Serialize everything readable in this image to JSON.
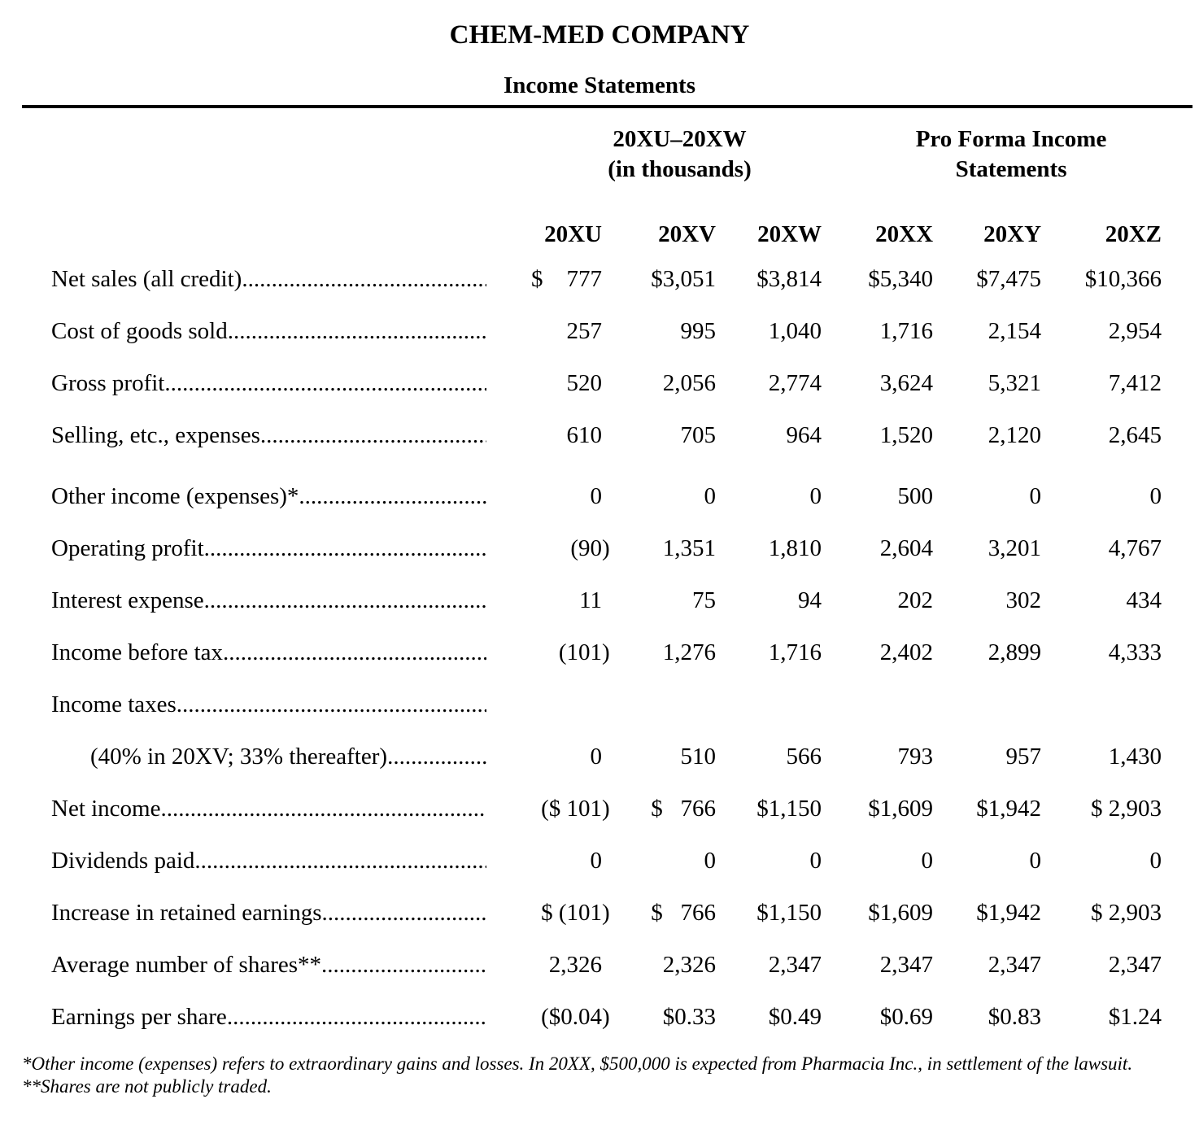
{
  "header": {
    "company": "CHEM-MED COMPANY",
    "subtitle": "Income Statements"
  },
  "table": {
    "group_headers": [
      {
        "line1": "20XU–20XW",
        "line2": "(in thousands)"
      },
      {
        "line1": "Pro Forma Income",
        "line2": "Statements"
      }
    ],
    "columns": [
      "20XU",
      "20XV",
      "20XW",
      "20XX",
      "20XY",
      "20XZ"
    ],
    "rows": [
      {
        "label": "Net sales (all credit)",
        "values": [
          "$    777",
          "$3,051",
          "$3,814",
          "$5,340",
          "$7,475",
          "$10,366"
        ]
      },
      {
        "label": "Cost of goods sold",
        "values": [
          "257",
          "995",
          "1,040",
          "1,716",
          "2,154",
          "2,954"
        ]
      },
      {
        "label": "Gross profit",
        "values": [
          "520",
          "2,056",
          "2,774",
          "3,624",
          "5,321",
          "7,412"
        ]
      },
      {
        "label": "Selling, etc., expenses",
        "values": [
          "610",
          "705",
          "964",
          "1,520",
          "2,120",
          "2,645"
        ]
      },
      {
        "label": "Other income (expenses)*",
        "values": [
          "0",
          "0",
          "0",
          "500",
          "0",
          "0"
        ],
        "spaced": true
      },
      {
        "label": "Operating profit",
        "values": [
          "(90)",
          "1,351",
          "1,810",
          "2,604",
          "3,201",
          "4,767"
        ]
      },
      {
        "label": "Interest expense",
        "values": [
          "11",
          "75",
          "94",
          "202",
          "302",
          "434"
        ]
      },
      {
        "label": "Income before tax",
        "values": [
          "(101)",
          "1,276",
          "1,716",
          "2,402",
          "2,899",
          "4,333"
        ]
      },
      {
        "label": "Income taxes",
        "values": [
          "",
          "",
          "",
          "",
          "",
          ""
        ]
      },
      {
        "label": "(40% in 20XV; 33% thereafter)",
        "values": [
          "0",
          "510",
          "566",
          "793",
          "957",
          "1,430"
        ],
        "indent": true
      },
      {
        "label": "Net income",
        "values": [
          "($ 101)",
          "$   766",
          "$1,150",
          "$1,609",
          "$1,942",
          "$ 2,903"
        ]
      },
      {
        "label": "Dividends paid",
        "values": [
          "0",
          "0",
          "0",
          "0",
          "0",
          "0"
        ]
      },
      {
        "label": "Increase in retained earnings",
        "values": [
          "$ (101)",
          "$   766",
          "$1,150",
          "$1,609",
          "$1,942",
          "$ 2,903"
        ]
      },
      {
        "label": "Average number of shares**",
        "values": [
          "2,326",
          "2,326",
          "2,347",
          "2,347",
          "2,347",
          "2,347"
        ]
      },
      {
        "label": "Earnings per share",
        "values": [
          "($0.04)",
          "$0.33",
          "$0.49",
          "$0.69",
          "$0.83",
          "$1.24"
        ]
      }
    ]
  },
  "footnotes": [
    "*Other income (expenses) refers to extraordinary gains and losses. In 20XX, $500,000 is expected from Pharmacia Inc., in settlement of the lawsuit.",
    "**Shares are not publicly traded."
  ]
}
